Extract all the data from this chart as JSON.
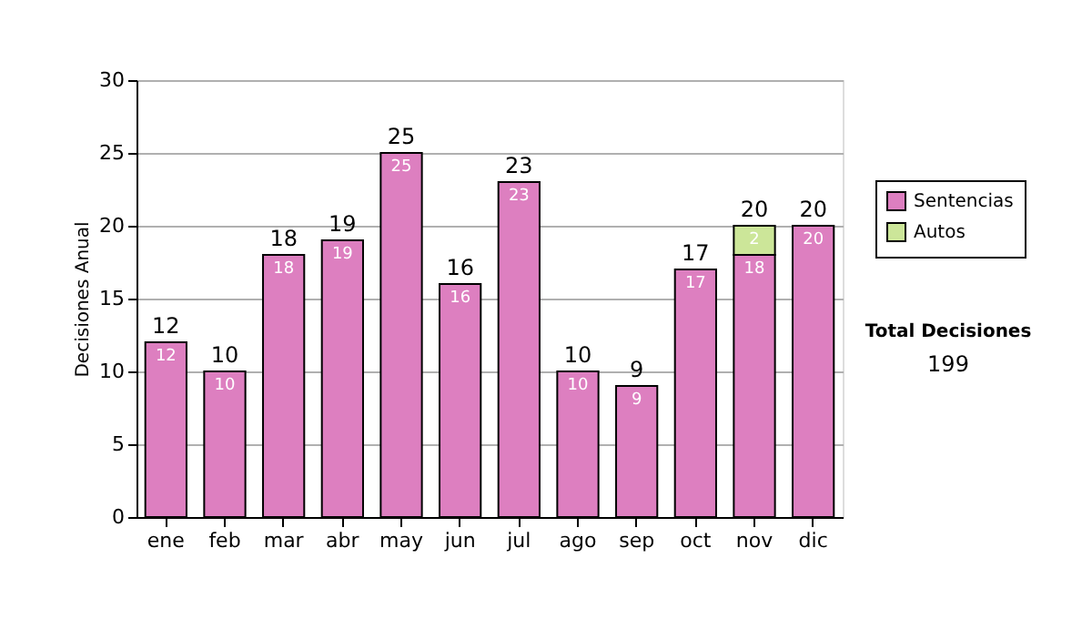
{
  "chart_data": {
    "type": "bar",
    "stacked": true,
    "ylabel": "Decisiones Anual",
    "categories": [
      "ene",
      "feb",
      "mar",
      "abr",
      "may",
      "jun",
      "jul",
      "ago",
      "sep",
      "oct",
      "nov",
      "dic"
    ],
    "series": [
      {
        "name": "Sentencias",
        "color": "#dd7fc0",
        "values": [
          12,
          10,
          18,
          19,
          25,
          16,
          23,
          10,
          9,
          17,
          18,
          20
        ]
      },
      {
        "name": "Autos",
        "color": "#cce699",
        "values": [
          null,
          null,
          null,
          null,
          null,
          null,
          null,
          null,
          null,
          null,
          2,
          null
        ]
      }
    ],
    "totals": [
      "12",
      "10",
      "18",
      "19",
      "25",
      "16",
      "23",
      "10",
      "9",
      "17",
      "20",
      "20"
    ],
    "data_labels": true,
    "ylim": [
      0,
      30
    ],
    "yticks": [
      0,
      5,
      10,
      15,
      20,
      25,
      30
    ],
    "grid": "y",
    "legend": "right",
    "annotations": [
      "Total Decisiones",
      "199"
    ]
  }
}
